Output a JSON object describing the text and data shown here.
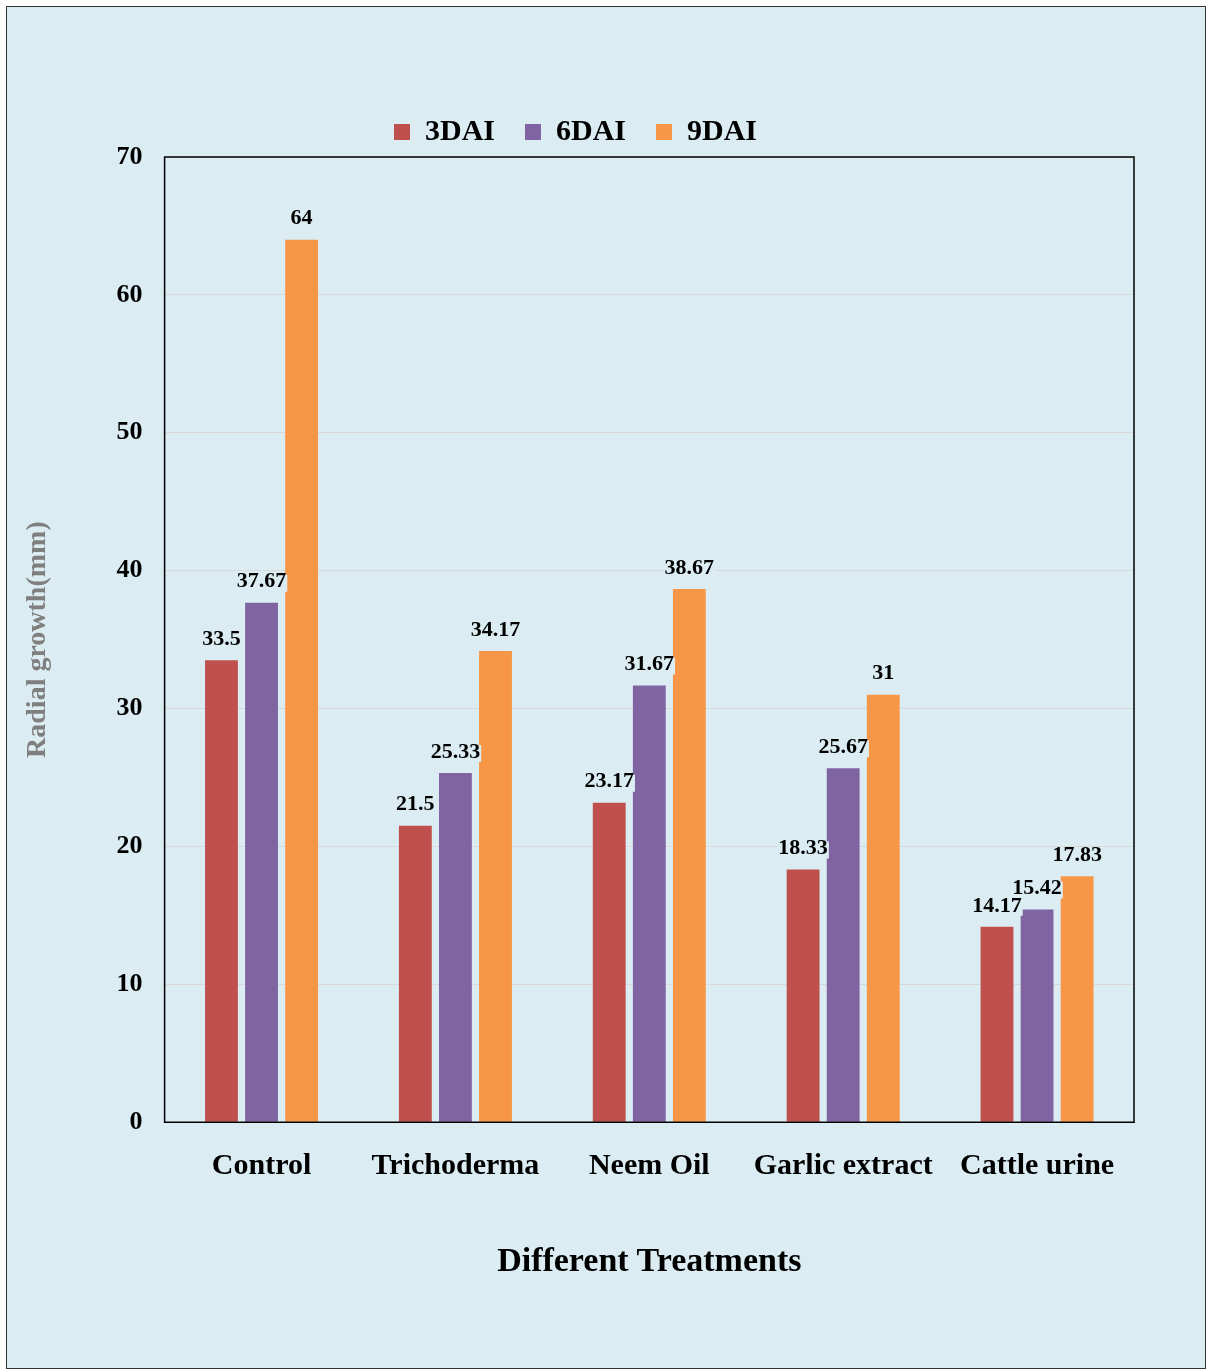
{
  "chart_data": {
    "type": "bar",
    "xlabel": "Different Treatments",
    "ylabel": "Radial growth(mm)",
    "categories": [
      "Control",
      "Trichoderma",
      "Neem Oil",
      "Garlic extract",
      "Cattle urine"
    ],
    "series": [
      {
        "name": "3DAI",
        "color": "#c0504d",
        "values": [
          33.5,
          21.5,
          23.17,
          18.33,
          14.17
        ]
      },
      {
        "name": "6DAI",
        "color": "#8064a2",
        "values": [
          37.67,
          25.33,
          31.67,
          25.67,
          15.42
        ]
      },
      {
        "name": "9DAI",
        "color": "#f79646",
        "values": [
          64,
          34.17,
          38.67,
          31,
          17.83
        ]
      }
    ],
    "ylim": [
      0,
      70
    ],
    "yticks": [
      0,
      10,
      20,
      30,
      40,
      50,
      60,
      70
    ],
    "grid": "y",
    "legend": "top",
    "data_labels": true
  }
}
